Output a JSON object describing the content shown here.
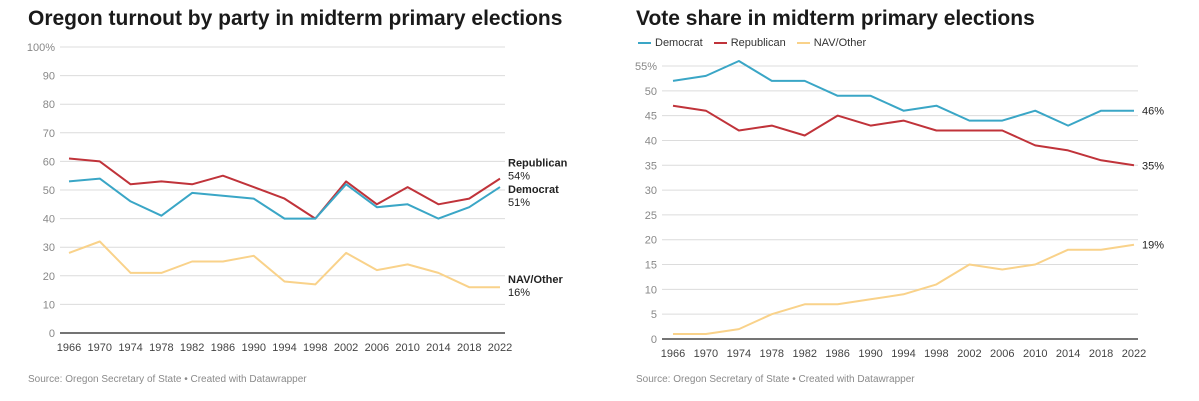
{
  "colors": {
    "democrat": "#3aa6c6",
    "republican": "#c0333a",
    "other": "#f9d28a",
    "grid": "#dcdcdc",
    "axis": "#222222",
    "tick": "#888888"
  },
  "left": {
    "title": "Oregon turnout by party in midterm primary elections",
    "source": "Source: Oregon Secretary of State • Created with Datawrapper"
  },
  "right": {
    "title": "Vote share in midterm primary elections",
    "source": "Source: Oregon Secretary of State • Created with Datawrapper",
    "legend": [
      "Democrat",
      "Republican",
      "NAV/Other"
    ]
  },
  "chart_data": [
    {
      "type": "line",
      "title": "Oregon turnout by party in midterm primary elections",
      "x": [
        1966,
        1970,
        1974,
        1978,
        1982,
        1986,
        1990,
        1994,
        1998,
        2002,
        2006,
        2010,
        2014,
        2018,
        2022
      ],
      "x_ticks": [
        "1966",
        "1970",
        "1974",
        "1978",
        "1982",
        "1986",
        "1990",
        "1994",
        "1998",
        "2002",
        "2006",
        "2010",
        "2014",
        "2018",
        "2022"
      ],
      "ylim": [
        0,
        100
      ],
      "y_ticks": [
        "0",
        "10",
        "20",
        "30",
        "40",
        "50",
        "60",
        "70",
        "80",
        "90",
        "100%"
      ],
      "y_tick_values": [
        0,
        10,
        20,
        30,
        40,
        50,
        60,
        70,
        80,
        90,
        100
      ],
      "grid": true,
      "series": [
        {
          "key": "republican",
          "name": "Republican",
          "end_label": "54%",
          "values": [
            61,
            60,
            52,
            53,
            52,
            55,
            51,
            47,
            40,
            53,
            45,
            51,
            45,
            47,
            54
          ]
        },
        {
          "key": "democrat",
          "name": "Democrat",
          "end_label": "51%",
          "values": [
            53,
            54,
            46,
            41,
            49,
            48,
            47,
            40,
            40,
            52,
            44,
            45,
            40,
            44,
            51
          ]
        },
        {
          "key": "other",
          "name": "NAV/Other",
          "end_label": "16%",
          "values": [
            28,
            32,
            21,
            21,
            25,
            25,
            27,
            18,
            17,
            28,
            22,
            24,
            21,
            16,
            16
          ]
        }
      ]
    },
    {
      "type": "line",
      "title": "Vote share in midterm primary elections",
      "x": [
        1966,
        1970,
        1974,
        1978,
        1982,
        1986,
        1990,
        1994,
        1998,
        2002,
        2006,
        2010,
        2014,
        2018,
        2022
      ],
      "x_ticks": [
        "1966",
        "1970",
        "1974",
        "1978",
        "1982",
        "1986",
        "1990",
        "1994",
        "1998",
        "2002",
        "2006",
        "2010",
        "2014",
        "2018",
        "2022"
      ],
      "ylim": [
        0,
        55
      ],
      "y_ticks": [
        "0",
        "5",
        "10",
        "15",
        "20",
        "25",
        "30",
        "35",
        "40",
        "45",
        "50",
        "55%"
      ],
      "y_tick_values": [
        0,
        5,
        10,
        15,
        20,
        25,
        30,
        35,
        40,
        45,
        50,
        55
      ],
      "grid": true,
      "legend_position": "top-left",
      "series": [
        {
          "key": "democrat",
          "name": "Democrat",
          "end_label": "46%",
          "values": [
            52,
            53,
            56,
            52,
            52,
            49,
            49,
            46,
            47,
            44,
            44,
            46,
            43,
            46,
            46
          ]
        },
        {
          "key": "republican",
          "name": "Republican",
          "end_label": "35%",
          "values": [
            47,
            46,
            42,
            43,
            41,
            45,
            43,
            44,
            42,
            42,
            42,
            39,
            38,
            36,
            35
          ]
        },
        {
          "key": "other",
          "name": "NAV/Other",
          "end_label": "19%",
          "values": [
            1,
            1,
            2,
            5,
            7,
            7,
            8,
            9,
            11,
            15,
            14,
            15,
            18,
            18,
            19
          ]
        }
      ]
    }
  ]
}
